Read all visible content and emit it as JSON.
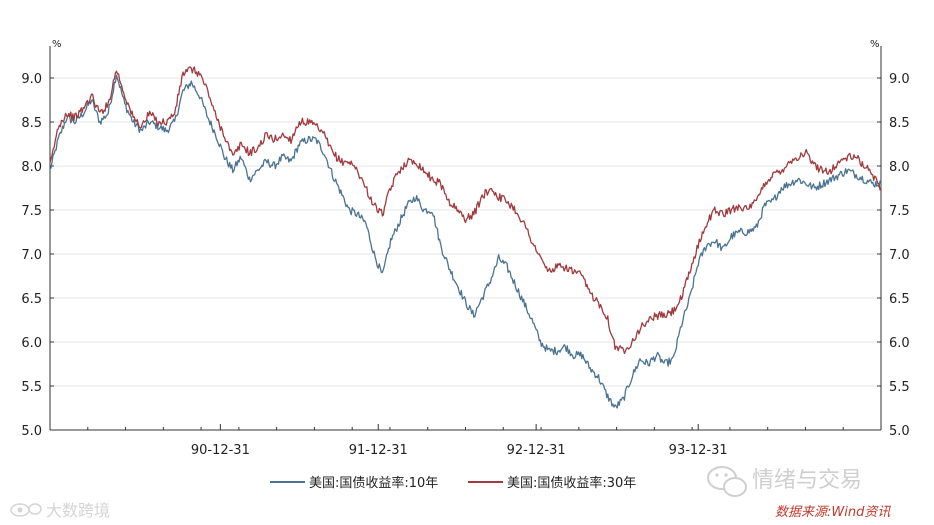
{
  "chart_data": {
    "type": "line",
    "y_unit_left": "%",
    "y_unit_right": "%",
    "ylim": [
      5.0,
      9.2
    ],
    "yticks": [
      "9.0",
      "8.5",
      "8.0",
      "7.5",
      "7.0",
      "6.5",
      "6.0",
      "5.5",
      "5.0"
    ],
    "xlim": [
      0,
      100
    ],
    "xtick_labels": [
      "90-12-31",
      "91-12-31",
      "92-12-31",
      "93-12-31"
    ],
    "xtick_positions": [
      20.5,
      39.5,
      58.5,
      78.0
    ],
    "grid": true,
    "legend_position": "bottom",
    "series": [
      {
        "name": "美国:国债收益率:10年",
        "color": "#4a7391",
        "x": [
          0,
          1,
          2,
          3,
          4,
          5,
          6,
          7,
          8,
          9,
          10,
          11,
          12,
          13,
          14,
          15,
          16,
          17,
          18,
          19,
          20,
          21,
          22,
          23,
          24,
          25,
          26,
          27,
          28,
          29,
          30,
          31,
          32,
          33,
          34,
          35,
          36,
          37,
          38,
          39,
          40,
          41,
          42,
          43,
          44,
          45,
          46,
          47,
          48,
          49,
          50,
          51,
          52,
          53,
          54,
          55,
          56,
          57,
          58,
          59,
          60,
          61,
          62,
          63,
          64,
          65,
          66,
          67,
          68,
          69,
          70,
          71,
          72,
          73,
          74,
          75,
          76,
          77,
          78,
          79,
          80,
          81,
          82,
          83,
          84,
          85,
          86,
          87,
          88,
          89,
          90,
          91,
          92,
          93,
          94,
          95,
          96,
          97,
          98,
          99,
          100
        ],
        "values": [
          7.95,
          8.3,
          8.55,
          8.5,
          8.6,
          8.75,
          8.5,
          8.6,
          9.05,
          8.7,
          8.5,
          8.4,
          8.5,
          8.45,
          8.4,
          8.5,
          8.85,
          8.95,
          8.8,
          8.55,
          8.35,
          8.1,
          7.95,
          8.1,
          7.85,
          7.95,
          8.05,
          8.0,
          8.1,
          8.05,
          8.25,
          8.3,
          8.3,
          8.15,
          7.9,
          7.7,
          7.5,
          7.45,
          7.35,
          7.0,
          6.75,
          7.15,
          7.35,
          7.55,
          7.65,
          7.5,
          7.5,
          7.1,
          6.85,
          6.65,
          6.45,
          6.3,
          6.5,
          6.7,
          6.95,
          6.85,
          6.65,
          6.45,
          6.25,
          6.0,
          5.9,
          5.9,
          5.95,
          5.85,
          5.85,
          5.7,
          5.6,
          5.4,
          5.25,
          5.35,
          5.6,
          5.8,
          5.75,
          5.85,
          5.75,
          5.8,
          6.2,
          6.5,
          6.9,
          7.1,
          7.15,
          7.05,
          7.2,
          7.25,
          7.25,
          7.3,
          7.55,
          7.6,
          7.75,
          7.8,
          7.85,
          7.8,
          7.75,
          7.8,
          7.85,
          7.9,
          7.95,
          7.9,
          7.85,
          7.8,
          7.8
        ]
      },
      {
        "name": "美国:国债收益率:30年",
        "color": "#a03a3e",
        "x": [
          0,
          1,
          2,
          3,
          4,
          5,
          6,
          7,
          8,
          9,
          10,
          11,
          12,
          13,
          14,
          15,
          16,
          17,
          18,
          19,
          20,
          21,
          22,
          23,
          24,
          25,
          26,
          27,
          28,
          29,
          30,
          31,
          32,
          33,
          34,
          35,
          36,
          37,
          38,
          39,
          40,
          41,
          42,
          43,
          44,
          45,
          46,
          47,
          48,
          49,
          50,
          51,
          52,
          53,
          54,
          55,
          56,
          57,
          58,
          59,
          60,
          61,
          62,
          63,
          64,
          65,
          66,
          67,
          68,
          69,
          70,
          71,
          72,
          73,
          74,
          75,
          76,
          77,
          78,
          79,
          80,
          81,
          82,
          83,
          84,
          85,
          86,
          87,
          88,
          89,
          90,
          91,
          92,
          93,
          94,
          95,
          96,
          97,
          98,
          99,
          100
        ],
        "values": [
          8.0,
          8.45,
          8.6,
          8.55,
          8.65,
          8.8,
          8.6,
          8.7,
          9.1,
          8.8,
          8.55,
          8.45,
          8.6,
          8.5,
          8.5,
          8.6,
          9.05,
          9.1,
          9.05,
          8.85,
          8.55,
          8.35,
          8.1,
          8.25,
          8.15,
          8.2,
          8.35,
          8.3,
          8.35,
          8.3,
          8.5,
          8.5,
          8.45,
          8.35,
          8.15,
          8.05,
          8.05,
          7.95,
          7.75,
          7.55,
          7.45,
          7.75,
          7.95,
          8.05,
          8.05,
          7.95,
          7.85,
          7.8,
          7.6,
          7.5,
          7.4,
          7.45,
          7.65,
          7.75,
          7.65,
          7.6,
          7.5,
          7.35,
          7.15,
          6.95,
          6.8,
          6.85,
          6.85,
          6.8,
          6.75,
          6.55,
          6.45,
          6.3,
          5.95,
          5.9,
          6.0,
          6.15,
          6.25,
          6.3,
          6.3,
          6.35,
          6.5,
          6.8,
          7.1,
          7.35,
          7.5,
          7.45,
          7.5,
          7.55,
          7.5,
          7.6,
          7.8,
          7.9,
          7.95,
          8.05,
          8.1,
          8.15,
          8.0,
          7.95,
          7.95,
          8.05,
          8.1,
          8.1,
          8.0,
          7.9,
          7.75
        ]
      }
    ]
  },
  "watermarks": {
    "brand_center": "情绪与交易",
    "brand_left": "大数跨境",
    "source": "数据来源:Wind资讯"
  },
  "icons": {
    "wechat": "wechat-icon",
    "logo": "weibo-eye-icon"
  }
}
